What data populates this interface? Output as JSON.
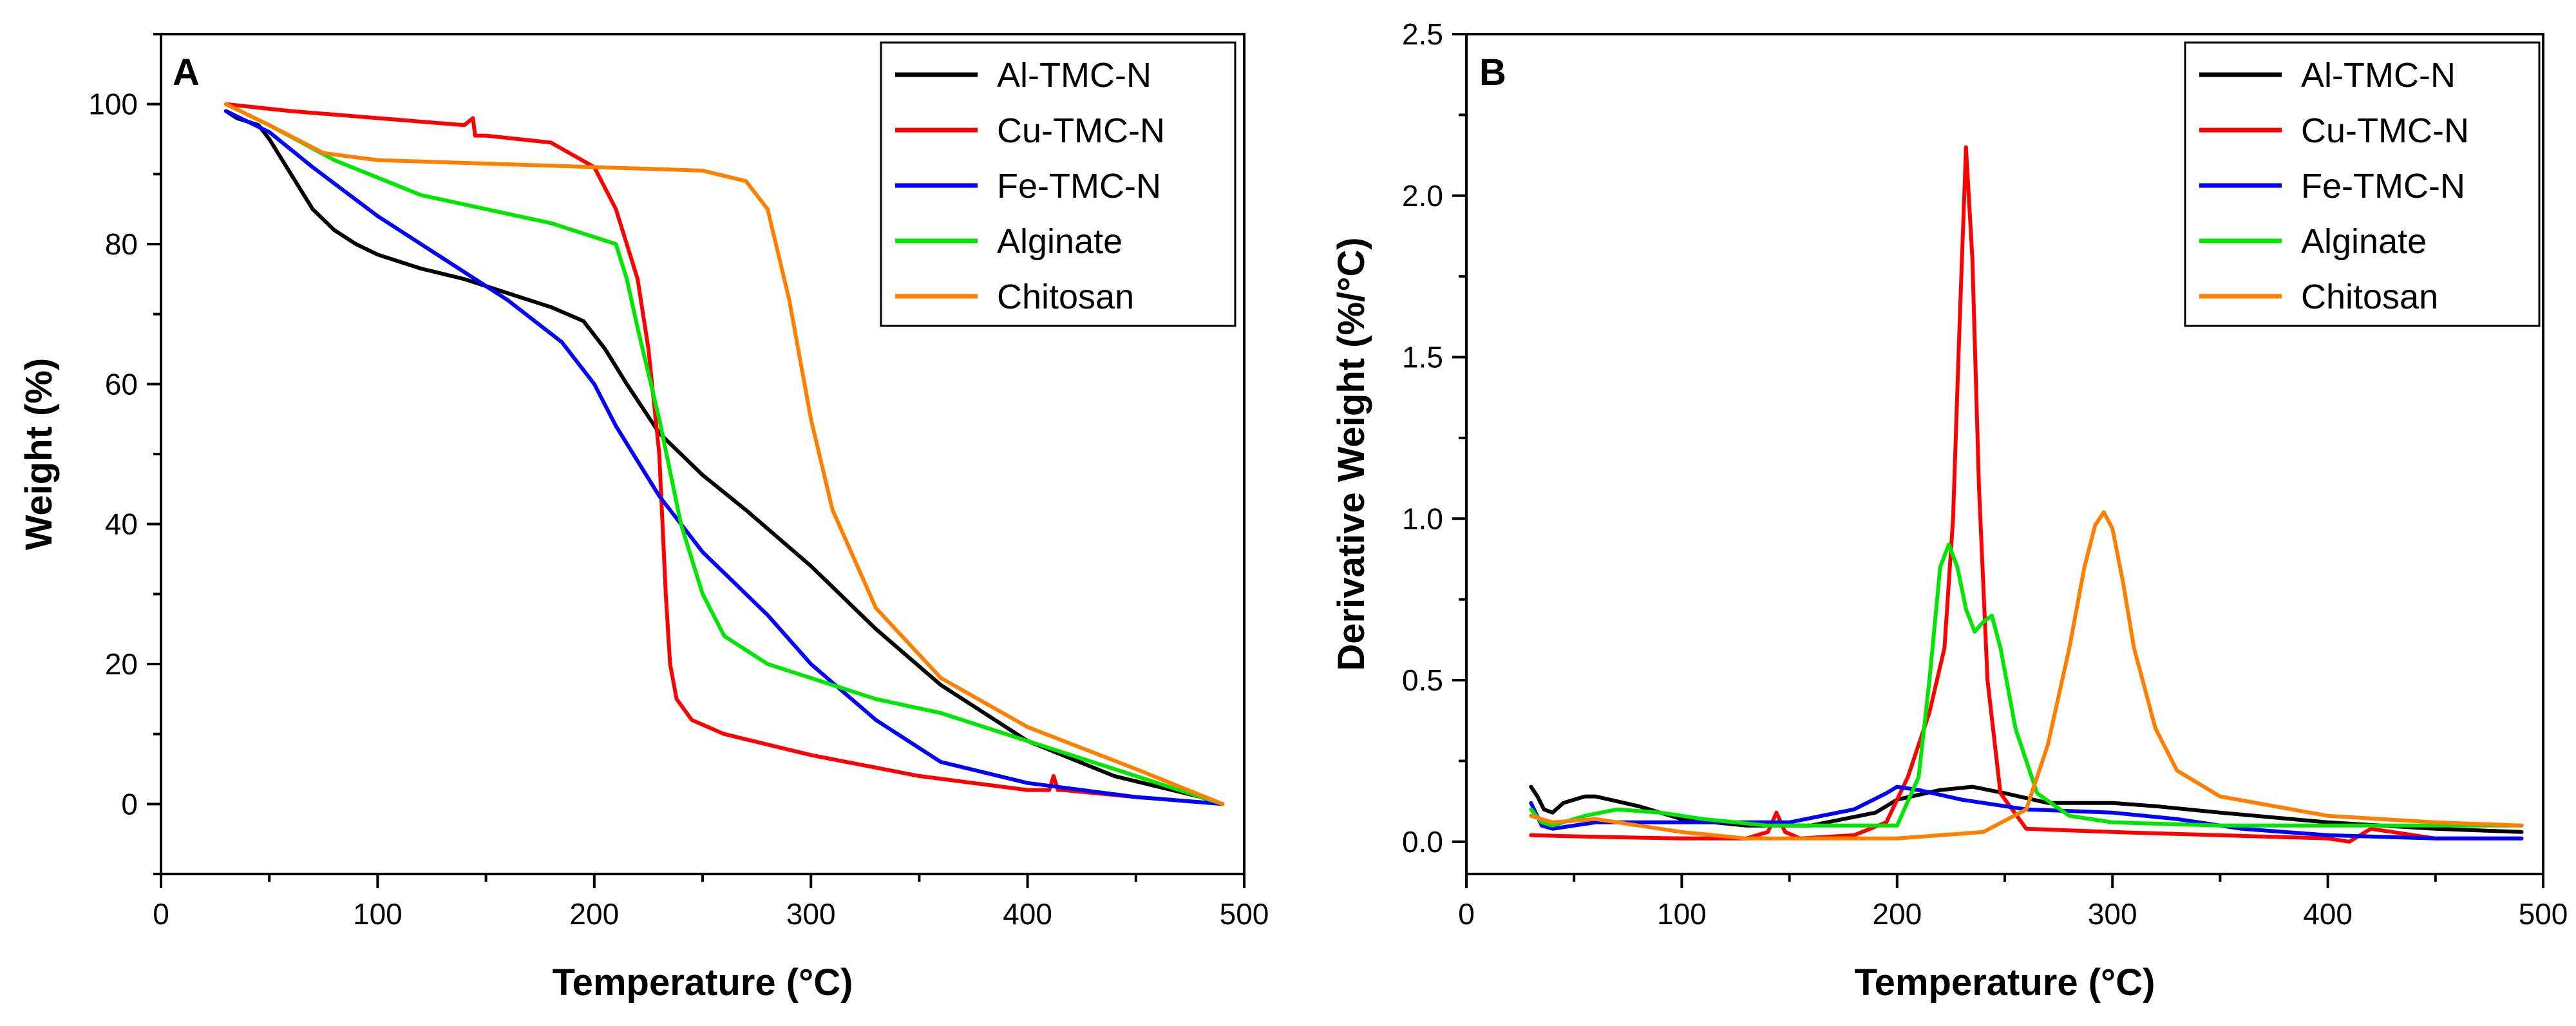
{
  "colors": {
    "Al-TMC-N": "#000000",
    "Cu-TMC-N": "#ff0000",
    "Fe-TMC-N": "#0000ff",
    "Alginate": "#00e600",
    "Chitosan": "#ff8000"
  },
  "chart_data": [
    {
      "type": "line",
      "panel_label": "A",
      "title": "",
      "xlabel": "Temperature (°C)",
      "ylabel": "Weight (%)",
      "xlim": [
        0,
        500
      ],
      "ylim": [
        -10,
        110
      ],
      "xticks": [
        0,
        100,
        200,
        300,
        400,
        500
      ],
      "yticks": [
        0,
        20,
        40,
        60,
        80,
        100
      ],
      "grid": false,
      "legend_position": "top-right",
      "legend": [
        "Al-TMC-N",
        "Cu-TMC-N",
        "Fe-TMC-N",
        "Alginate",
        "Chitosan"
      ],
      "series": [
        {
          "name": "Al-TMC-N",
          "x": [
            30,
            35,
            40,
            45,
            50,
            60,
            70,
            80,
            90,
            100,
            120,
            140,
            160,
            180,
            195,
            205,
            215,
            230,
            250,
            270,
            300,
            330,
            360,
            400,
            440,
            480,
            490
          ],
          "values": [
            99,
            98,
            97.5,
            97,
            95,
            90,
            85,
            82,
            80,
            78.5,
            76.5,
            75,
            73,
            71,
            69,
            65,
            60,
            53,
            47,
            42,
            34,
            25,
            17,
            9,
            4,
            1,
            0
          ]
        },
        {
          "name": "Cu-TMC-N",
          "x": [
            30,
            60,
            100,
            140,
            144,
            145,
            150,
            180,
            200,
            210,
            220,
            225,
            230,
            233,
            235,
            238,
            245,
            260,
            300,
            350,
            400,
            410,
            412,
            414,
            416,
            450,
            490
          ],
          "values": [
            100,
            99,
            98,
            97,
            98,
            95.5,
            95.5,
            94.5,
            91,
            85,
            75,
            65,
            50,
            30,
            20,
            15,
            12,
            10,
            7,
            4,
            2,
            2,
            4,
            2,
            2,
            1,
            0
          ]
        },
        {
          "name": "Fe-TMC-N",
          "x": [
            30,
            50,
            70,
            100,
            130,
            160,
            185,
            200,
            210,
            230,
            250,
            280,
            300,
            330,
            360,
            400,
            450,
            490
          ],
          "values": [
            99,
            96,
            91,
            84,
            78,
            72,
            66,
            60,
            54,
            44,
            36,
            27,
            20,
            12,
            6,
            3,
            1,
            0
          ]
        },
        {
          "name": "Alginate",
          "x": [
            30,
            50,
            80,
            120,
            150,
            180,
            200,
            210,
            215,
            220,
            230,
            240,
            250,
            260,
            280,
            300,
            330,
            360,
            400,
            450,
            490
          ],
          "values": [
            100,
            97,
            92,
            87,
            85,
            83,
            81,
            80,
            75,
            68,
            55,
            40,
            30,
            24,
            20,
            18,
            15,
            13,
            9,
            4,
            0
          ]
        },
        {
          "name": "Chitosan",
          "x": [
            30,
            50,
            75,
            100,
            150,
            200,
            250,
            270,
            280,
            290,
            300,
            310,
            330,
            360,
            400,
            450,
            490
          ],
          "values": [
            100,
            97,
            93,
            92,
            91.5,
            91,
            90.5,
            89,
            85,
            72,
            55,
            42,
            28,
            18,
            11,
            5,
            0
          ]
        }
      ]
    },
    {
      "type": "line",
      "panel_label": "B",
      "title": "",
      "xlabel": "Temperature (°C)",
      "ylabel": "Derivative Weight (%/°C)",
      "xlim": [
        0,
        500
      ],
      "ylim": [
        -0.1,
        2.5
      ],
      "xticks": [
        0,
        100,
        200,
        300,
        400,
        500
      ],
      "yticks": [
        0.0,
        0.5,
        1.0,
        1.5,
        2.0,
        2.5
      ],
      "ytick_labels": [
        "0.0",
        "0.5",
        "1.0",
        "1.5",
        "2.0",
        "2.5"
      ],
      "grid": false,
      "legend_position": "top-right",
      "legend": [
        "Al-TMC-N",
        "Cu-TMC-N",
        "Fe-TMC-N",
        "Alginate",
        "Chitosan"
      ],
      "series": [
        {
          "name": "Al-TMC-N",
          "x": [
            30,
            33,
            36,
            40,
            45,
            50,
            55,
            60,
            80,
            100,
            130,
            160,
            190,
            200,
            220,
            235,
            250,
            270,
            300,
            320,
            350,
            400,
            450,
            490
          ],
          "values": [
            0.17,
            0.14,
            0.1,
            0.09,
            0.12,
            0.13,
            0.14,
            0.14,
            0.11,
            0.07,
            0.05,
            0.05,
            0.09,
            0.13,
            0.16,
            0.17,
            0.15,
            0.12,
            0.12,
            0.11,
            0.09,
            0.06,
            0.04,
            0.03
          ]
        },
        {
          "name": "Cu-TMC-N",
          "x": [
            30,
            60,
            100,
            130,
            140,
            144,
            148,
            155,
            180,
            195,
            205,
            215,
            222,
            226,
            229,
            232,
            235,
            238,
            242,
            248,
            260,
            300,
            400,
            410,
            415,
            420,
            450,
            490
          ],
          "values": [
            0.02,
            0.015,
            0.01,
            0.01,
            0.03,
            0.09,
            0.03,
            0.01,
            0.02,
            0.06,
            0.2,
            0.4,
            0.6,
            1.0,
            1.6,
            2.15,
            1.8,
            1.1,
            0.5,
            0.15,
            0.04,
            0.03,
            0.01,
            0.0,
            0.02,
            0.04,
            0.01,
            0.01
          ]
        },
        {
          "name": "Fe-TMC-N",
          "x": [
            30,
            35,
            40,
            60,
            100,
            150,
            180,
            195,
            200,
            210,
            230,
            260,
            300,
            330,
            360,
            400,
            450,
            490
          ],
          "values": [
            0.12,
            0.05,
            0.04,
            0.06,
            0.06,
            0.06,
            0.1,
            0.15,
            0.17,
            0.16,
            0.13,
            0.1,
            0.09,
            0.07,
            0.04,
            0.02,
            0.01,
            0.01
          ]
        },
        {
          "name": "Alginate",
          "x": [
            30,
            35,
            40,
            55,
            70,
            90,
            110,
            140,
            170,
            200,
            210,
            215,
            220,
            224,
            228,
            232,
            236,
            240,
            244,
            248,
            255,
            265,
            280,
            300,
            350,
            400,
            450,
            490
          ],
          "values": [
            0.1,
            0.06,
            0.05,
            0.08,
            0.1,
            0.09,
            0.07,
            0.05,
            0.05,
            0.05,
            0.2,
            0.5,
            0.85,
            0.92,
            0.85,
            0.72,
            0.65,
            0.68,
            0.7,
            0.6,
            0.35,
            0.15,
            0.08,
            0.06,
            0.05,
            0.05,
            0.05,
            0.05
          ]
        },
        {
          "name": "Chitosan",
          "x": [
            30,
            40,
            60,
            80,
            100,
            130,
            160,
            200,
            240,
            260,
            270,
            280,
            287,
            292,
            296,
            300,
            305,
            310,
            320,
            330,
            350,
            400,
            450,
            490
          ],
          "values": [
            0.08,
            0.06,
            0.07,
            0.05,
            0.03,
            0.01,
            0.01,
            0.01,
            0.03,
            0.1,
            0.3,
            0.6,
            0.85,
            0.98,
            1.02,
            0.97,
            0.8,
            0.6,
            0.35,
            0.22,
            0.14,
            0.08,
            0.06,
            0.05
          ]
        }
      ]
    }
  ]
}
